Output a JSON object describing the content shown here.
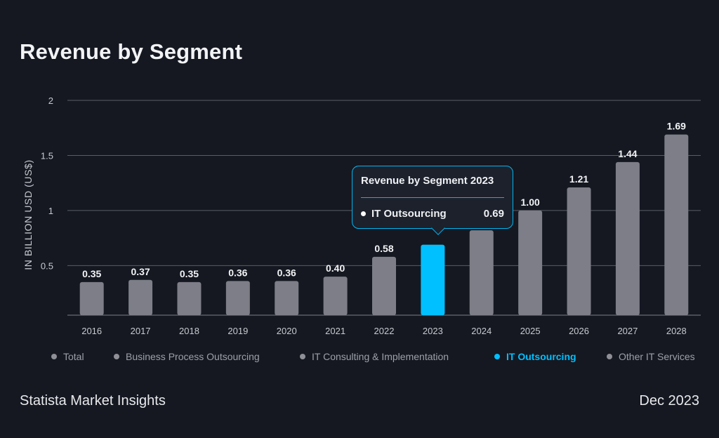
{
  "title": "Revenue by Segment",
  "y_axis_label": "IN BILLION USD (US$)",
  "legend": [
    {
      "label": "Total",
      "active": false
    },
    {
      "label": "Business Process Outsourcing",
      "active": false
    },
    {
      "label": "IT Consulting & Implementation",
      "active": false
    },
    {
      "label": "IT Outsourcing",
      "active": true
    },
    {
      "label": "Other IT Services",
      "active": false
    }
  ],
  "tooltip": {
    "title": "Revenue by Segment 2023",
    "series": "IT Outsourcing",
    "value": "0.69"
  },
  "footer": {
    "source": "Statista Market Insights",
    "date": "Dec 2023"
  },
  "colors": {
    "background": "#151821",
    "bar": "#7d7e87",
    "highlight": "#00c0ff",
    "grid": "#5a5d66"
  },
  "chart_data": {
    "type": "bar",
    "categories": [
      "2016",
      "2017",
      "2018",
      "2019",
      "2020",
      "2021",
      "2022",
      "2023",
      "2024",
      "2025",
      "2026",
      "2027",
      "2028"
    ],
    "series": [
      {
        "name": "IT Outsourcing",
        "values": [
          0.35,
          0.37,
          0.35,
          0.36,
          0.36,
          0.4,
          0.58,
          0.69,
          0.82,
          1.0,
          1.21,
          1.44,
          1.69
        ]
      }
    ],
    "value_labels": [
      "0.35",
      "0.37",
      "0.35",
      "0.36",
      "0.36",
      "0.40",
      "0.58",
      "",
      "",
      "1.00",
      "1.21",
      "1.44",
      "1.69"
    ],
    "highlight_category": "2023",
    "yticks": [
      0.5,
      1,
      1.5,
      2
    ],
    "ytick_labels": [
      "0.5",
      "1",
      "1.5",
      "2"
    ],
    "ylim": [
      0.05,
      2
    ],
    "ylabel": "IN BILLION USD (US$)",
    "grid": true,
    "legend_position": "bottom"
  }
}
